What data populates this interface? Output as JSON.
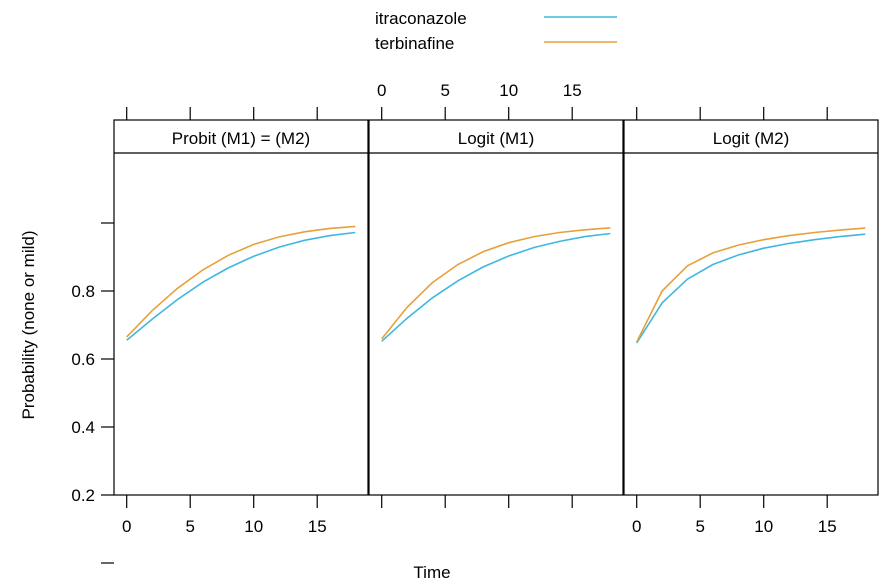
{
  "chart_data": {
    "type": "line",
    "xlabel": "Time",
    "ylabel": "Probability (none or mild)",
    "xlim": [
      -1,
      19
    ],
    "ylim": [
      0,
      1
    ],
    "x_ticks": [
      "0",
      "5",
      "10",
      "15"
    ],
    "y_ticks": [
      "0.2",
      "0.4",
      "0.6",
      "0.8"
    ],
    "grid": false,
    "legend_position": "top-center",
    "legend": [
      {
        "name": "itraconazole",
        "color": "#3fb7e0"
      },
      {
        "name": "terbinafine",
        "color": "#e8a03a"
      }
    ],
    "x": [
      0,
      2,
      4,
      6,
      8,
      10,
      12,
      14,
      16,
      18
    ],
    "panels": [
      {
        "title": "Probit (M1) = (M2)",
        "series": [
          {
            "name": "itraconazole",
            "values": [
              0.655,
              0.717,
              0.775,
              0.826,
              0.868,
              0.902,
              0.929,
              0.949,
              0.963,
              0.972
            ]
          },
          {
            "name": "terbinafine",
            "values": [
              0.665,
              0.742,
              0.808,
              0.862,
              0.905,
              0.937,
              0.959,
              0.974,
              0.984,
              0.99
            ]
          }
        ]
      },
      {
        "title": "Logit (M1)",
        "series": [
          {
            "name": "itraconazole",
            "values": [
              0.652,
              0.72,
              0.78,
              0.83,
              0.871,
              0.903,
              0.928,
              0.946,
              0.96,
              0.969
            ]
          },
          {
            "name": "terbinafine",
            "values": [
              0.659,
              0.752,
              0.825,
              0.878,
              0.916,
              0.942,
              0.96,
              0.972,
              0.98,
              0.986
            ]
          }
        ]
      },
      {
        "title": "Logit (M2)",
        "series": [
          {
            "name": "itraconazole",
            "values": [
              0.647,
              0.765,
              0.835,
              0.878,
              0.906,
              0.926,
              0.94,
              0.951,
              0.96,
              0.967
            ]
          },
          {
            "name": "terbinafine",
            "values": [
              0.65,
              0.8,
              0.874,
              0.912,
              0.935,
              0.951,
              0.963,
              0.972,
              0.979,
              0.985
            ]
          }
        ]
      }
    ]
  }
}
